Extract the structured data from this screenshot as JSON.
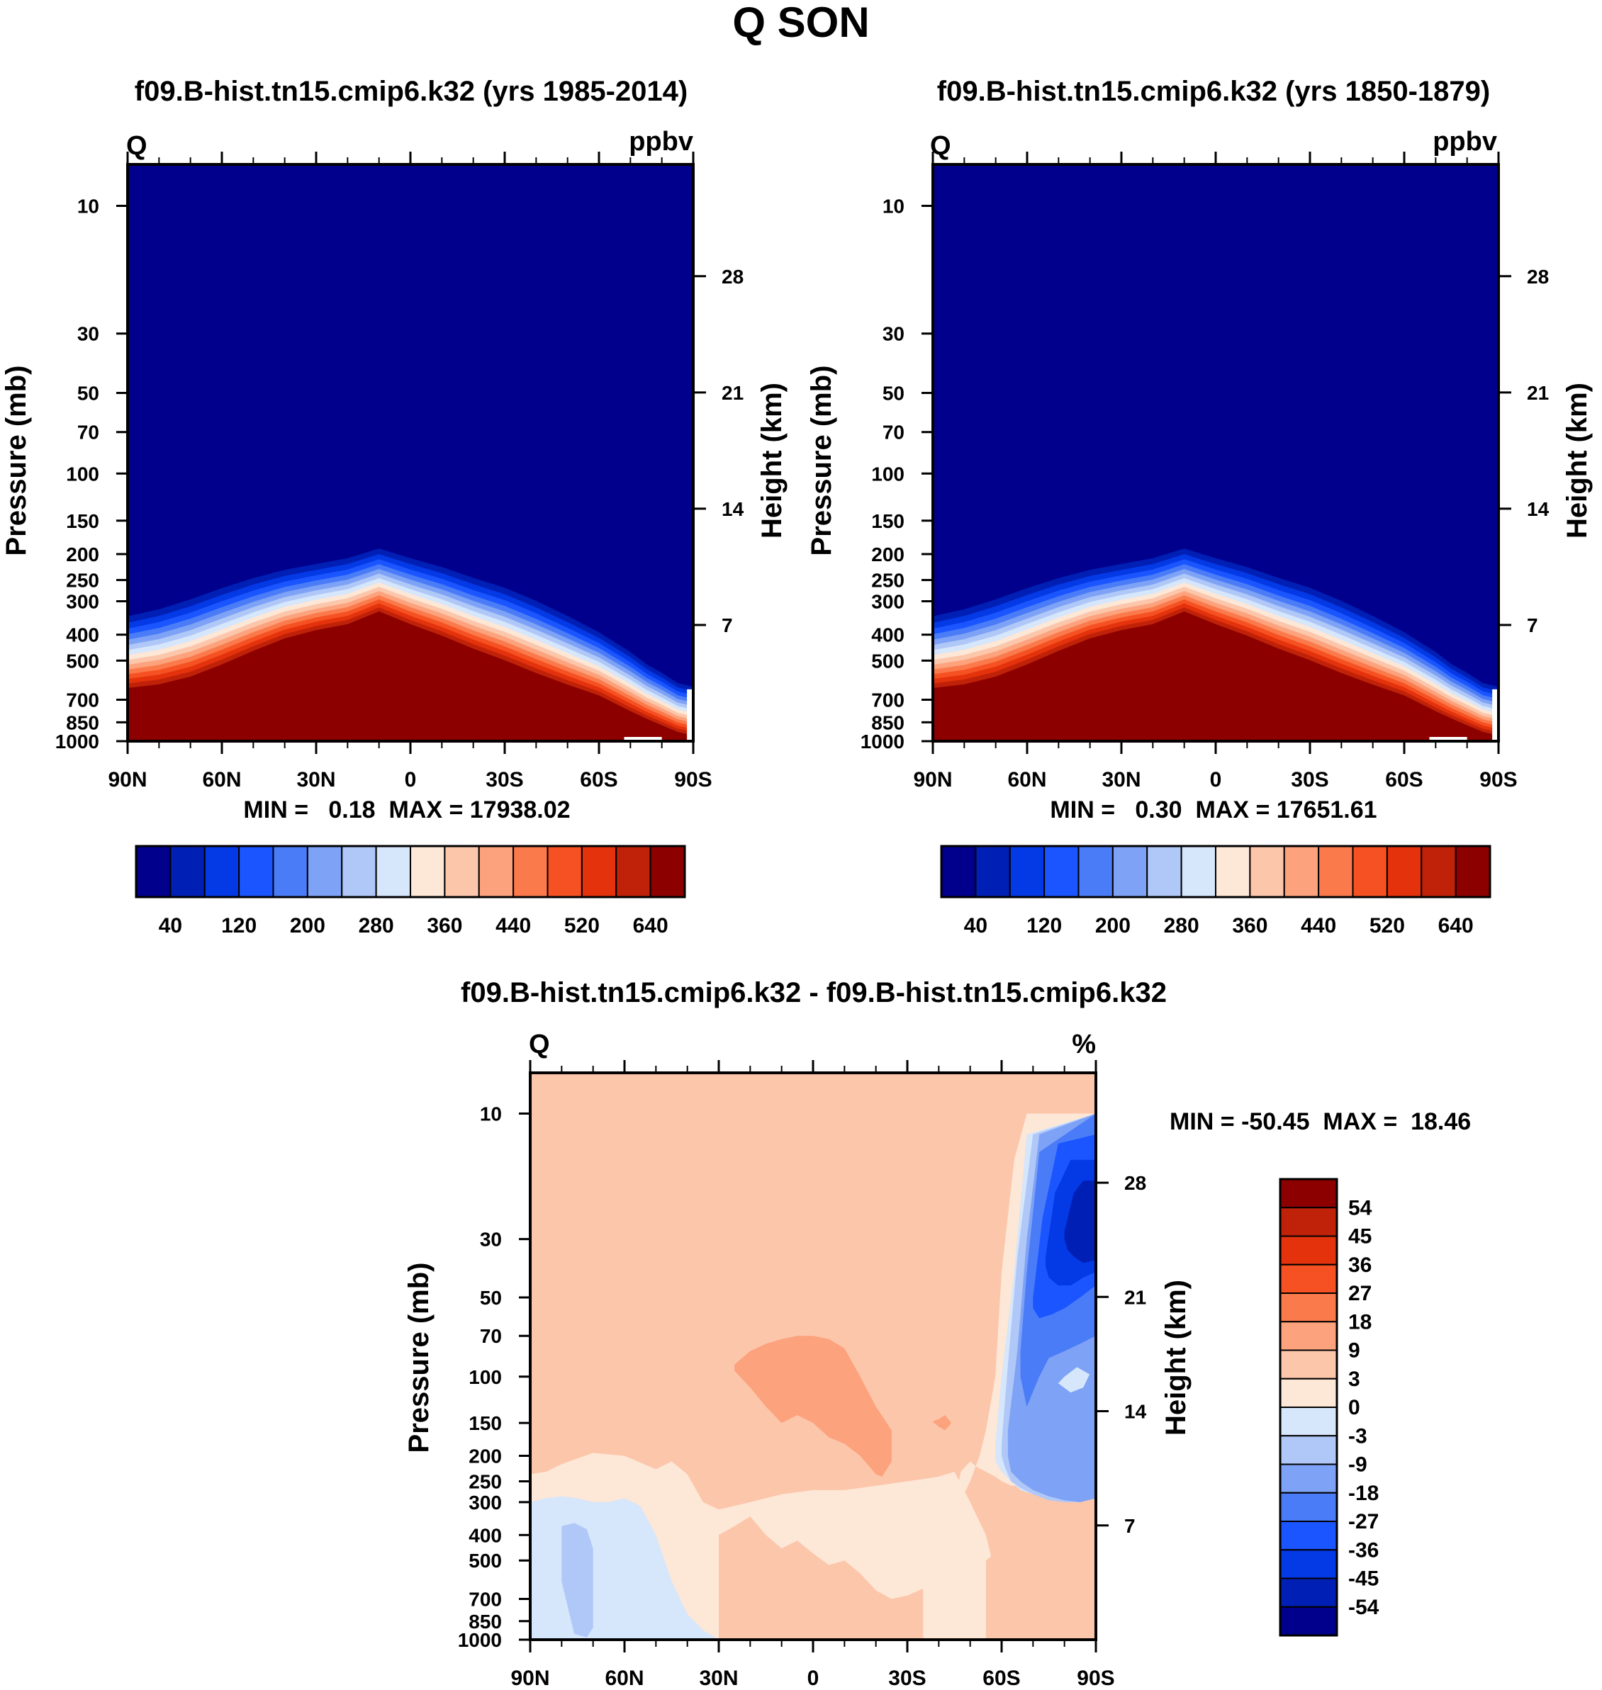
{
  "figure_title": "Q SON",
  "chart_data": [
    {
      "type": "heatmap",
      "title": "f09.B-hist.tn15.cmip6.k32 (yrs 1985-2014)",
      "corner_left": "Q",
      "corner_right": "ppbv",
      "ylabel": "Pressure (mb)",
      "ylabel_right": "Height (km)",
      "x_ticks": [
        "90N",
        "60N",
        "30N",
        "0",
        "30S",
        "60S",
        "90S"
      ],
      "y_ticks": [
        "10",
        "30",
        "50",
        "70",
        "100",
        "150",
        "200",
        "250",
        "300",
        "400",
        "500",
        "700",
        "850",
        "1000"
      ],
      "y_right_ticks": [
        "28",
        "21",
        "14",
        "7"
      ],
      "min_max_text": "MIN =   0.18  MAX = 17938.02",
      "x": [
        90,
        80,
        70,
        60,
        50,
        40,
        30,
        20,
        10,
        0,
        -10,
        -20,
        -30,
        -40,
        -50,
        -60,
        -70,
        -75,
        -80,
        -85,
        -90
      ],
      "tropopause_mb": [
        320,
        300,
        275,
        250,
        230,
        215,
        205,
        195,
        180,
        195,
        210,
        230,
        250,
        280,
        320,
        370,
        440,
        490,
        530,
        580,
        600
      ],
      "surface_gradient_mb": [
        660,
        640,
        600,
        540,
        480,
        430,
        400,
        380,
        340,
        380,
        420,
        470,
        520,
        580,
        640,
        700,
        800,
        850,
        900,
        950,
        980
      ],
      "colorbar": {
        "labels": [
          "40",
          "120",
          "200",
          "280",
          "360",
          "440",
          "520",
          "640"
        ],
        "colors": [
          "#00008c",
          "#001fb4",
          "#0439e6",
          "#1a55ff",
          "#4b7cf8",
          "#7ea2f5",
          "#b0c8f8",
          "#d6e6fb",
          "#fde7d6",
          "#fcc6ab",
          "#fca27c",
          "#fb7a4c",
          "#f65122",
          "#e3320c",
          "#bf2208",
          "#8c0000"
        ]
      }
    },
    {
      "type": "heatmap",
      "title": "f09.B-hist.tn15.cmip6.k32 (yrs 1850-1879)",
      "corner_left": "Q",
      "corner_right": "ppbv",
      "ylabel": "Pressure (mb)",
      "ylabel_right": "Height (km)",
      "x_ticks": [
        "90N",
        "60N",
        "30N",
        "0",
        "30S",
        "60S",
        "90S"
      ],
      "y_ticks": [
        "10",
        "30",
        "50",
        "70",
        "100",
        "150",
        "200",
        "250",
        "300",
        "400",
        "500",
        "700",
        "850",
        "1000"
      ],
      "y_right_ticks": [
        "28",
        "21",
        "14",
        "7"
      ],
      "min_max_text": "MIN =   0.30  MAX = 17651.61",
      "x": [
        90,
        80,
        70,
        60,
        50,
        40,
        30,
        20,
        10,
        0,
        -10,
        -20,
        -30,
        -40,
        -50,
        -60,
        -70,
        -75,
        -80,
        -85,
        -90
      ],
      "tropopause_mb": [
        320,
        300,
        275,
        250,
        230,
        215,
        205,
        195,
        180,
        195,
        210,
        230,
        250,
        280,
        320,
        370,
        440,
        490,
        530,
        580,
        600
      ],
      "surface_gradient_mb": [
        660,
        640,
        600,
        540,
        480,
        430,
        400,
        380,
        340,
        380,
        420,
        470,
        520,
        580,
        640,
        700,
        800,
        850,
        900,
        950,
        980
      ],
      "colorbar": {
        "labels": [
          "40",
          "120",
          "200",
          "280",
          "360",
          "440",
          "520",
          "640"
        ],
        "colors": [
          "#00008c",
          "#001fb4",
          "#0439e6",
          "#1a55ff",
          "#4b7cf8",
          "#7ea2f5",
          "#b0c8f8",
          "#d6e6fb",
          "#fde7d6",
          "#fcc6ab",
          "#fca27c",
          "#fb7a4c",
          "#f65122",
          "#e3320c",
          "#bf2208",
          "#8c0000"
        ]
      }
    },
    {
      "type": "heatmap",
      "title": "f09.B-hist.tn15.cmip6.k32 - f09.B-hist.tn15.cmip6.k32",
      "corner_left": "Q",
      "corner_right": "%",
      "ylabel": "Pressure (mb)",
      "ylabel_right": "Height (km)",
      "x_ticks": [
        "90N",
        "60N",
        "30N",
        "0",
        "30S",
        "60S",
        "90S"
      ],
      "y_ticks": [
        "10",
        "30",
        "50",
        "70",
        "100",
        "150",
        "200",
        "250",
        "300",
        "400",
        "500",
        "700",
        "850",
        "1000"
      ],
      "y_right_ticks": [
        "28",
        "21",
        "14",
        "7"
      ],
      "min_max_text": "MIN = -50.45  MAX =  18.46",
      "background_value": 6,
      "regions": [
        {
          "value": 1.5,
          "lat": [
            90,
            85,
            80,
            70,
            60,
            50,
            45,
            40,
            35,
            30,
            20,
            10,
            0,
            -10,
            -20,
            -30,
            -35,
            -40,
            -45,
            -50,
            -55,
            -60,
            -60,
            -55,
            -50,
            -45,
            -40,
            -30,
            -20,
            -10,
            0,
            10,
            20,
            30,
            40,
            50,
            60,
            70,
            80,
            90
          ],
          "p": [
            235,
            230,
            215,
            195,
            200,
            225,
            210,
            235,
            300,
            320,
            300,
            280,
            270,
            270,
            260,
            250,
            245,
            240,
            230,
            300,
            400,
            700,
            1000,
            1000,
            1000,
            1000,
            1000,
            1000,
            1000,
            1000,
            1000,
            1000,
            1000,
            1000,
            1000,
            1000,
            1000,
            1000,
            1000,
            1000
          ]
        },
        {
          "value": 6,
          "lat": [
            30,
            25,
            20,
            15,
            10,
            5,
            0,
            -5,
            -10,
            -15,
            -20,
            -25,
            -30,
            -35,
            -35,
            -30,
            -25,
            -20,
            -15,
            -10,
            -5,
            0,
            5,
            10,
            15,
            20,
            25,
            30
          ],
          "p": [
            400,
            370,
            340,
            400,
            450,
            420,
            470,
            520,
            500,
            560,
            650,
            700,
            680,
            640,
            1000,
            1000,
            1000,
            1000,
            1000,
            1000,
            1000,
            1000,
            1000,
            1000,
            1000,
            1000,
            1000,
            1000
          ]
        },
        {
          "value": 6,
          "lat": [
            -55,
            -60,
            -65,
            -70,
            -75,
            -80,
            -85,
            -90,
            -90,
            -85,
            -80,
            -75,
            -70,
            -65,
            -60,
            -55
          ],
          "p": [
            500,
            450,
            420,
            400,
            420,
            450,
            480,
            520,
            900,
            950,
            1000,
            1000,
            1000,
            1000,
            1000,
            1000
          ]
        },
        {
          "value": -1.5,
          "lat": [
            90,
            85,
            80,
            75,
            70,
            65,
            60,
            55,
            50,
            45,
            40,
            35,
            30,
            35,
            40,
            45,
            50,
            55,
            60,
            65,
            70,
            75,
            80,
            85,
            90
          ],
          "p": [
            300,
            290,
            285,
            290,
            300,
            300,
            290,
            310,
            400,
            600,
            800,
            920,
            1000,
            1000,
            1000,
            1000,
            1000,
            1000,
            1000,
            1000,
            1000,
            1000,
            1000,
            1000,
            1000
          ]
        },
        {
          "value": -6,
          "lat": [
            80,
            76,
            72,
            70,
            70,
            72,
            76,
            80
          ],
          "p": [
            370,
            360,
            380,
            450,
            900,
            980,
            950,
            600
          ]
        },
        {
          "value": 13,
          "lat": [
            25,
            20,
            15,
            10,
            5,
            0,
            -5,
            -10,
            -15,
            -20,
            -25,
            -25,
            -22,
            -20,
            -15,
            -10,
            -5,
            0,
            5,
            10,
            15,
            20,
            25
          ],
          "p": [
            90,
            80,
            75,
            72,
            70,
            70,
            72,
            78,
            100,
            130,
            160,
            210,
            240,
            235,
            200,
            180,
            170,
            150,
            140,
            150,
            130,
            110,
            95
          ]
        },
        {
          "value": 13,
          "lat": [
            -40,
            -42,
            -44,
            -42,
            -40,
            -38
          ],
          "p": [
            145,
            140,
            150,
            160,
            155,
            148
          ]
        },
        {
          "value": 1.5,
          "lat": [
            -45,
            -48,
            -50,
            -53,
            -55,
            -58,
            -60,
            -64,
            -68,
            -90,
            -90,
            -88,
            -85,
            -80,
            -75,
            -70,
            -66,
            -63,
            -60,
            -58,
            -55,
            -52,
            -50,
            -47,
            -45
          ],
          "p": [
            300,
            280,
            250,
            200,
            160,
            100,
            40,
            15,
            10,
            10,
            240,
            250,
            240,
            240,
            245,
            250,
            260,
            260,
            250,
            240,
            230,
            220,
            210,
            230,
            300
          ]
        },
        {
          "value": -1.5,
          "lat": [
            -58,
            -60,
            -64,
            -68,
            -90,
            -90,
            -85,
            -80,
            -75,
            -70,
            -66,
            -63,
            -60,
            -58
          ],
          "p": [
            180,
            100,
            40,
            12,
            10,
            260,
            270,
            280,
            290,
            280,
            270,
            250,
            230,
            210
          ]
        },
        {
          "value": -6,
          "lat": [
            -60,
            -62,
            -65,
            -70,
            -90,
            -90,
            -85,
            -80,
            -75,
            -70,
            -66,
            -63,
            -61,
            -60
          ],
          "p": [
            180,
            90,
            35,
            12,
            10,
            290,
            300,
            300,
            295,
            280,
            265,
            250,
            220,
            200
          ]
        },
        {
          "value": -13,
          "lat": [
            -62,
            -65,
            -68,
            -72,
            -90,
            -90,
            -85,
            -80,
            -75,
            -70,
            -66,
            -63,
            -62
          ],
          "p": [
            160,
            80,
            30,
            12,
            10,
            290,
            300,
            295,
            285,
            270,
            250,
            230,
            200
          ]
        },
        {
          "value": -22,
          "lat": [
            -66,
            -68,
            -72,
            -90,
            -90,
            -85,
            -80,
            -75,
            -72,
            -68,
            -66
          ],
          "p": [
            80,
            40,
            14,
            10,
            70,
            75,
            80,
            85,
            100,
            130,
            100
          ]
        },
        {
          "value": -31,
          "lat": [
            -70,
            -73,
            -78,
            -90,
            -90,
            -85,
            -80,
            -76,
            -72,
            -70
          ],
          "p": [
            50,
            25,
            13,
            12,
            45,
            50,
            55,
            58,
            60,
            55
          ]
        },
        {
          "value": -40,
          "lat": [
            -74,
            -77,
            -82,
            -90,
            -90,
            -86,
            -82,
            -78,
            -75,
            -74
          ],
          "p": [
            35,
            20,
            15,
            15,
            40,
            42,
            45,
            45,
            42,
            38
          ]
        },
        {
          "value": -49,
          "lat": [
            -80,
            -83,
            -86,
            -90,
            -90,
            -86,
            -83,
            -81,
            -80
          ],
          "p": [
            28,
            20,
            18,
            18,
            36,
            37,
            35,
            33,
            30
          ]
        },
        {
          "value": -1.5,
          "lat": [
            -80,
            -84,
            -88,
            -86,
            -82,
            -78
          ],
          "p": [
            100,
            92,
            98,
            110,
            115,
            106
          ]
        }
      ],
      "colorbar": {
        "orientation": "vertical",
        "labels": [
          "54",
          "45",
          "36",
          "27",
          "18",
          "9",
          "3",
          "0",
          "-3",
          "-9",
          "-18",
          "-27",
          "-36",
          "-45",
          "-54"
        ],
        "colors": [
          "#8c0000",
          "#bf2208",
          "#e3320c",
          "#f65122",
          "#fb7a4c",
          "#fca27c",
          "#fcc6ab",
          "#fde7d6",
          "#d6e6fb",
          "#b0c8f8",
          "#7ea2f5",
          "#4b7cf8",
          "#1a55ff",
          "#0439e6",
          "#001fb4",
          "#00008c"
        ]
      }
    }
  ]
}
